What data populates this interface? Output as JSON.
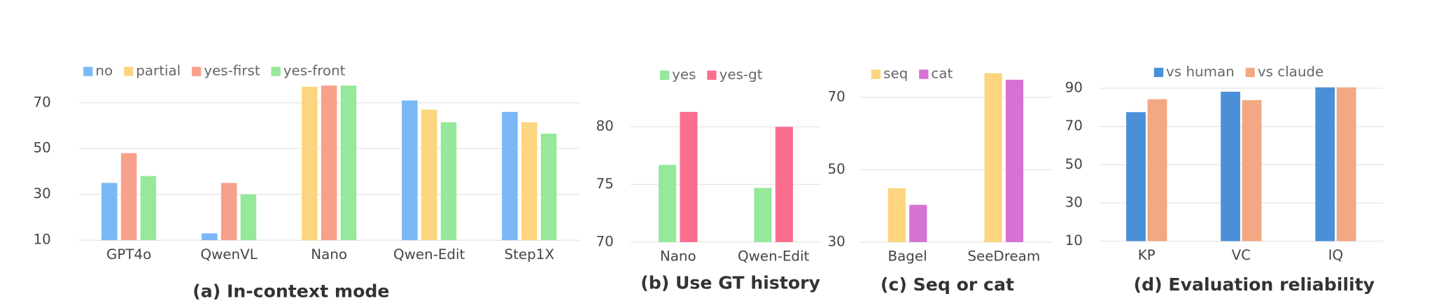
{
  "chart_data": [
    {
      "type": "bar",
      "title": "(a) In-context mode",
      "categories": [
        "GPT4o",
        "QwenVL",
        "Nano",
        "Qwen-Edit",
        "Step1X"
      ],
      "series": [
        {
          "name": "no",
          "color": "#7ab8f5",
          "values": [
            35,
            13,
            null,
            71,
            66
          ]
        },
        {
          "name": "partial",
          "color": "#fdd57e",
          "values": [
            null,
            null,
            77,
            67,
            61.5
          ]
        },
        {
          "name": "yes-first",
          "color": "#f7a08a",
          "values": [
            48,
            35,
            77.5,
            null,
            null
          ]
        },
        {
          "name": "yes-front",
          "color": "#96e89a",
          "values": [
            38,
            30,
            77.5,
            61.5,
            56.5
          ]
        }
      ],
      "ylim": [
        10,
        80
      ],
      "yticks": [
        10,
        30,
        50,
        70
      ],
      "grid": true,
      "legend": "top"
    },
    {
      "type": "bar",
      "title": "(b) Use GT history",
      "categories": [
        "Nano",
        "Qwen-Edit"
      ],
      "series": [
        {
          "name": "yes",
          "color": "#96e89a",
          "values": [
            76.7,
            74.7
          ]
        },
        {
          "name": "yes-gt",
          "color": "#fb6e8e",
          "values": [
            81.3,
            80
          ]
        }
      ],
      "ylim": [
        70,
        84
      ],
      "yticks": [
        70,
        75,
        80
      ],
      "grid": true,
      "legend": "top"
    },
    {
      "type": "bar",
      "title": "(c) Seq or cat",
      "categories": [
        "Bagel",
        "SeeDream"
      ],
      "series": [
        {
          "name": "seq",
          "color": "#fdd57e",
          "values": [
            44.9,
            76.7
          ]
        },
        {
          "name": "cat",
          "color": "#d672d4",
          "values": [
            40.3,
            74.9
          ]
        }
      ],
      "ylim": [
        30,
        80
      ],
      "yticks": [
        30,
        50,
        70
      ],
      "grid": true,
      "legend": "top"
    },
    {
      "type": "bar",
      "title": "(d) Evaluation reliability",
      "categories": [
        "KP",
        "VC",
        "IQ"
      ],
      "series": [
        {
          "name": "vs human",
          "color": "#4a90d9",
          "values": [
            77.5,
            88.2,
            90.5
          ]
        },
        {
          "name": "vs claude",
          "color": "#f2a882",
          "values": [
            84.3,
            83.8,
            90.5
          ]
        }
      ],
      "ylim": [
        10,
        92
      ],
      "yticks": [
        10,
        30,
        50,
        70,
        90
      ],
      "grid": true,
      "legend": "top"
    }
  ]
}
